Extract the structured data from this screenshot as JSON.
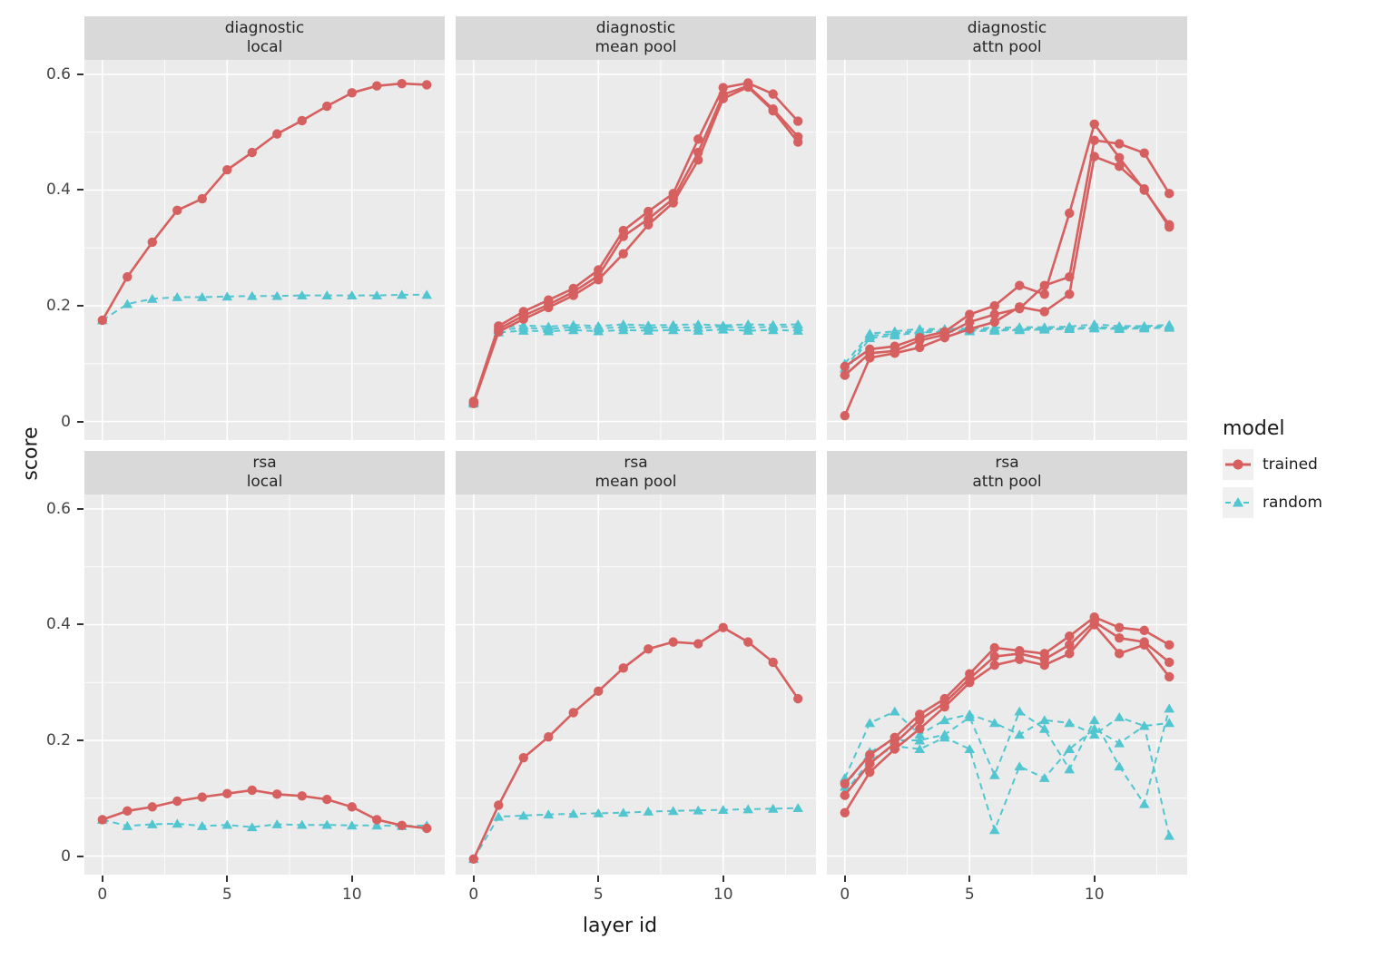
{
  "chart_data": {
    "type": "line",
    "title": "",
    "xlabel": "layer id",
    "ylabel": "score",
    "x": [
      0,
      1,
      2,
      3,
      4,
      5,
      6,
      7,
      8,
      9,
      10,
      11,
      12,
      13
    ],
    "xlim": [
      -0.72,
      13.72
    ],
    "ylim": [
      -0.032,
      0.625
    ],
    "x_ticks": {
      "values": [
        0,
        5,
        10
      ],
      "labels": [
        "0",
        "5",
        "10"
      ],
      "minor": [
        2.5,
        7.5,
        12.5
      ]
    },
    "y_ticks": {
      "values": [
        0.6,
        0.4,
        0.2,
        0
      ],
      "labels": [
        "0.6",
        "0.4",
        "0.2",
        "0"
      ],
      "minor": [
        0.1,
        0.3,
        0.5
      ]
    },
    "grid": "major+minor, white on gray panel",
    "legend": {
      "title": "model",
      "position": "right",
      "entries": [
        {
          "label": "trained",
          "marker": "circle",
          "line": "solid"
        },
        {
          "label": "random",
          "marker": "triangle",
          "line": "dashed"
        }
      ]
    },
    "colors": {
      "trained": "#D65F5F",
      "random": "#52C6D0",
      "panel_bg": "#EBEBEB",
      "strip_bg": "#D9D9D9",
      "grid": "#FFFFFF"
    },
    "facet_rows": [
      "diagnostic",
      "rsa"
    ],
    "facet_cols": [
      "local",
      "mean pool",
      "attn pool"
    ],
    "panels": [
      {
        "strip_line1": "diagnostic",
        "strip_line2": "local",
        "row": 0,
        "col": 0,
        "trained": [
          [
            0.175,
            0.25,
            0.31,
            0.365,
            0.385,
            0.435,
            0.465,
            0.497,
            0.52,
            0.545,
            0.568,
            0.58,
            0.584,
            0.582
          ]
        ],
        "random": [
          [
            0.175,
            0.203,
            0.212,
            0.215,
            0.215,
            0.216,
            0.217,
            0.217,
            0.218,
            0.218,
            0.218,
            0.218,
            0.219,
            0.219
          ]
        ]
      },
      {
        "strip_line1": "diagnostic",
        "strip_line2": "mean pool",
        "row": 0,
        "col": 1,
        "trained": [
          [
            0.035,
            0.165,
            0.19,
            0.21,
            0.23,
            0.262,
            0.33,
            0.363,
            0.394,
            0.488,
            0.577,
            0.585,
            0.566,
            0.519
          ],
          [
            0.033,
            0.16,
            0.183,
            0.202,
            0.224,
            0.252,
            0.32,
            0.35,
            0.385,
            0.465,
            0.565,
            0.58,
            0.54,
            0.492
          ],
          [
            0.031,
            0.155,
            0.177,
            0.197,
            0.218,
            0.245,
            0.29,
            0.34,
            0.378,
            0.452,
            0.558,
            0.578,
            0.537,
            0.483
          ]
        ],
        "random": [
          [
            0.035,
            0.162,
            0.166,
            0.164,
            0.167,
            0.165,
            0.168,
            0.166,
            0.167,
            0.168,
            0.166,
            0.168,
            0.167,
            0.168
          ],
          [
            0.033,
            0.158,
            0.162,
            0.16,
            0.163,
            0.161,
            0.163,
            0.162,
            0.163,
            0.162,
            0.164,
            0.162,
            0.164,
            0.163
          ],
          [
            0.031,
            0.154,
            0.157,
            0.156,
            0.158,
            0.156,
            0.158,
            0.157,
            0.158,
            0.157,
            0.159,
            0.157,
            0.158,
            0.157
          ]
        ]
      },
      {
        "strip_line1": "diagnostic",
        "strip_line2": "attn pool",
        "row": 0,
        "col": 2,
        "trained": [
          [
            0.095,
            0.125,
            0.13,
            0.145,
            0.155,
            0.185,
            0.2,
            0.235,
            0.22,
            0.36,
            0.514,
            0.456,
            0.4,
            0.34
          ],
          [
            0.08,
            0.118,
            0.122,
            0.14,
            0.15,
            0.172,
            0.185,
            0.195,
            0.235,
            0.25,
            0.486,
            0.48,
            0.464,
            0.394
          ],
          [
            0.01,
            0.11,
            0.118,
            0.128,
            0.145,
            0.16,
            0.172,
            0.198,
            0.19,
            0.22,
            0.458,
            0.441,
            0.402,
            0.336
          ]
        ],
        "random": [
          [
            0.1,
            0.152,
            0.156,
            0.16,
            0.16,
            0.161,
            0.162,
            0.163,
            0.163,
            0.164,
            0.168,
            0.165,
            0.165,
            0.167
          ],
          [
            0.092,
            0.148,
            0.152,
            0.157,
            0.157,
            0.158,
            0.159,
            0.16,
            0.161,
            0.161,
            0.163,
            0.162,
            0.163,
            0.164
          ],
          [
            0.085,
            0.144,
            0.149,
            0.154,
            0.155,
            0.156,
            0.157,
            0.158,
            0.159,
            0.16,
            0.161,
            0.16,
            0.161,
            0.162
          ]
        ]
      },
      {
        "strip_line1": "rsa",
        "strip_line2": "local",
        "row": 1,
        "col": 0,
        "trained": [
          [
            0.063,
            0.078,
            0.085,
            0.095,
            0.102,
            0.108,
            0.114,
            0.107,
            0.104,
            0.098,
            0.085,
            0.063,
            0.053,
            0.048
          ]
        ],
        "random": [
          [
            0.063,
            0.052,
            0.055,
            0.056,
            0.052,
            0.054,
            0.05,
            0.055,
            0.054,
            0.054,
            0.053,
            0.053,
            0.052,
            0.053
          ]
        ]
      },
      {
        "strip_line1": "rsa",
        "strip_line2": "mean pool",
        "row": 1,
        "col": 1,
        "trained": [
          [
            -0.005,
            0.088,
            0.17,
            0.206,
            0.248,
            0.285,
            0.325,
            0.358,
            0.37,
            0.367,
            0.395,
            0.37,
            0.335,
            0.272
          ]
        ],
        "random": [
          [
            -0.005,
            0.068,
            0.07,
            0.072,
            0.073,
            0.074,
            0.075,
            0.077,
            0.078,
            0.079,
            0.08,
            0.081,
            0.082,
            0.083
          ]
        ]
      },
      {
        "strip_line1": "rsa",
        "strip_line2": "attn pool",
        "row": 1,
        "col": 2,
        "trained": [
          [
            0.125,
            0.175,
            0.205,
            0.245,
            0.272,
            0.315,
            0.36,
            0.355,
            0.35,
            0.38,
            0.413,
            0.395,
            0.39,
            0.365
          ],
          [
            0.105,
            0.16,
            0.195,
            0.235,
            0.265,
            0.307,
            0.345,
            0.35,
            0.34,
            0.365,
            0.405,
            0.377,
            0.37,
            0.335
          ],
          [
            0.075,
            0.145,
            0.185,
            0.22,
            0.258,
            0.3,
            0.33,
            0.34,
            0.33,
            0.35,
            0.4,
            0.35,
            0.365,
            0.31
          ]
        ],
        "random": [
          [
            0.135,
            0.23,
            0.25,
            0.21,
            0.235,
            0.245,
            0.23,
            0.21,
            0.235,
            0.23,
            0.21,
            0.24,
            0.225,
            0.23
          ],
          [
            0.12,
            0.18,
            0.2,
            0.2,
            0.21,
            0.24,
            0.14,
            0.25,
            0.22,
            0.15,
            0.235,
            0.155,
            0.09,
            0.255
          ],
          [
            0.11,
            0.165,
            0.19,
            0.185,
            0.205,
            0.185,
            0.045,
            0.155,
            0.135,
            0.185,
            0.22,
            0.195,
            0.225,
            0.035
          ]
        ]
      }
    ]
  }
}
